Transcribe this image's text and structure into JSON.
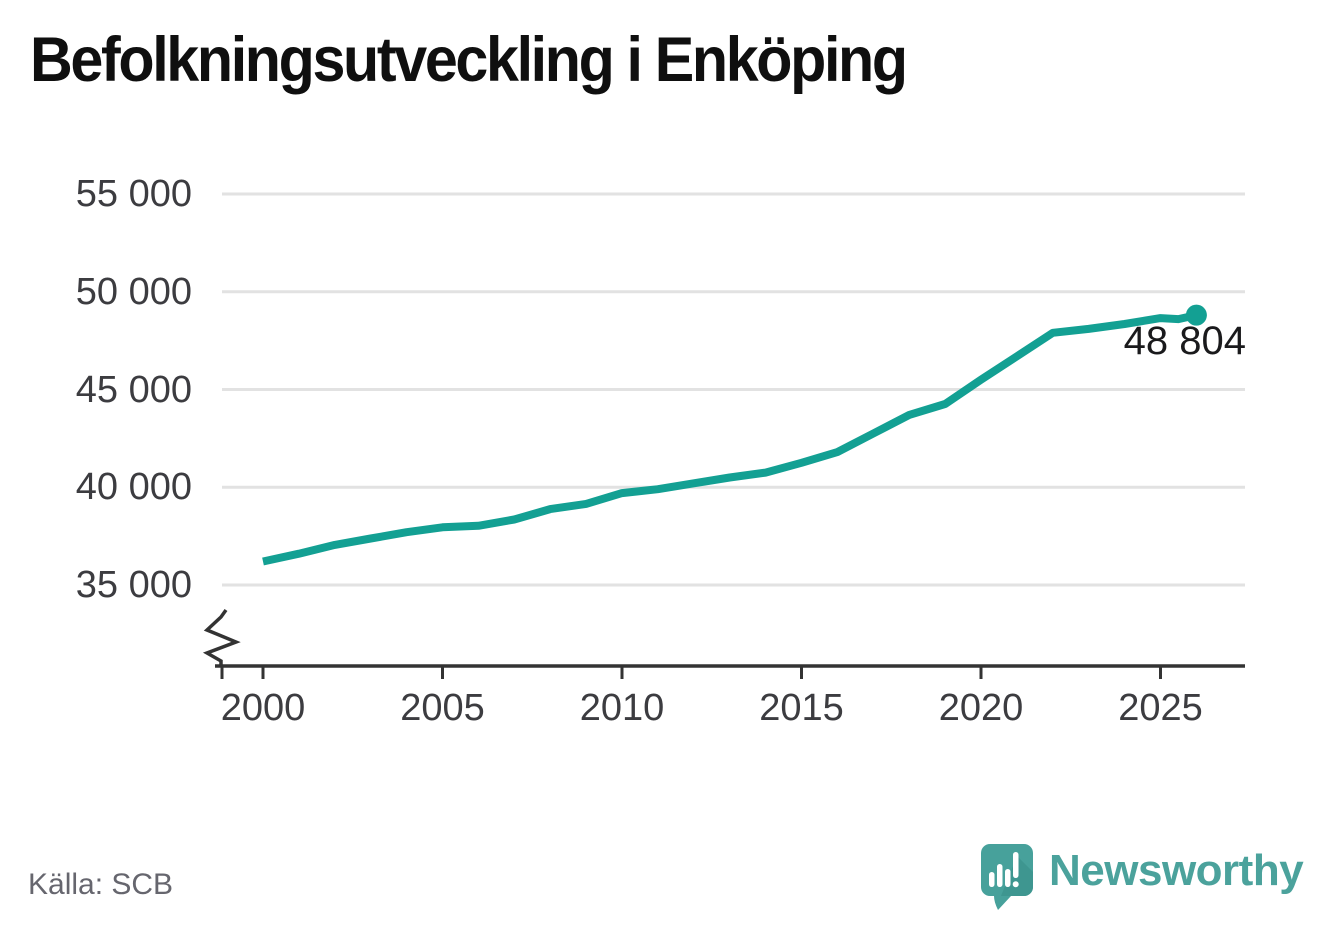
{
  "header": {
    "title": "Befolkningsutveckling i Enköping"
  },
  "chart_data": {
    "type": "line",
    "title": "Befolkningsutveckling i Enköping",
    "x_axis": {
      "tick_labels": [
        "2000",
        "2005",
        "2010",
        "2015",
        "2020",
        "2025"
      ],
      "tick_years": [
        2000,
        2005,
        2010,
        2015,
        2020,
        2025
      ]
    },
    "y_axis": {
      "tick_labels": [
        "55 000",
        "50 000",
        "45 000",
        "40 000",
        "35 000"
      ],
      "tick_values": [
        55000,
        50000,
        45000,
        40000,
        35000
      ],
      "range": [
        35000,
        55000
      ],
      "broken_axis": true
    },
    "grid": "horizontal-only",
    "line_color": "#13a093",
    "axis_color": "#333333",
    "gridline_color": "#e2e2e2",
    "points": [
      {
        "year": 2000,
        "value": 36200
      },
      {
        "year": 2001,
        "value": 36600
      },
      {
        "year": 2002,
        "value": 37050
      },
      {
        "year": 2003,
        "value": 37380
      },
      {
        "year": 2004,
        "value": 37700
      },
      {
        "year": 2005,
        "value": 37950
      },
      {
        "year": 2006,
        "value": 38030
      },
      {
        "year": 2007,
        "value": 38350
      },
      {
        "year": 2008,
        "value": 38880
      },
      {
        "year": 2009,
        "value": 39150
      },
      {
        "year": 2010,
        "value": 39700
      },
      {
        "year": 2011,
        "value": 39900
      },
      {
        "year": 2012,
        "value": 40200
      },
      {
        "year": 2013,
        "value": 40500
      },
      {
        "year": 2014,
        "value": 40750
      },
      {
        "year": 2015,
        "value": 41250
      },
      {
        "year": 2016,
        "value": 41800
      },
      {
        "year": 2017,
        "value": 42750
      },
      {
        "year": 2018,
        "value": 43700
      },
      {
        "year": 2019,
        "value": 44260
      },
      {
        "year": 2020,
        "value": 45500
      },
      {
        "year": 2021,
        "value": 46700
      },
      {
        "year": 2022,
        "value": 47900
      },
      {
        "year": 2023,
        "value": 48100
      },
      {
        "year": 2024,
        "value": 48350
      },
      {
        "year": 2025,
        "value": 48650
      },
      {
        "year": 2025.5,
        "value": 48600
      },
      {
        "year": 2026,
        "value": 48804
      }
    ],
    "end_label": {
      "text": "48 804",
      "value": 48804
    }
  },
  "footer": {
    "source_label": "Källa: SCB",
    "brand_name": "Newsworthy"
  }
}
